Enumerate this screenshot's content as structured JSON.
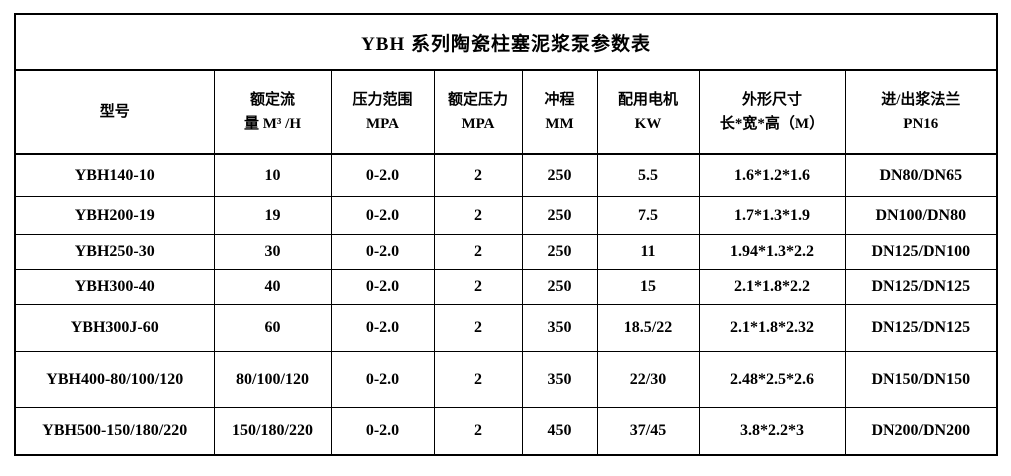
{
  "page": {
    "background": "#ffffff",
    "border_color": "#000000",
    "text_color": "#000000"
  },
  "table": {
    "title": "YBH 系列陶瓷柱塞泥浆泵参数表",
    "headers": [
      {
        "line1": "型号",
        "line2": ""
      },
      {
        "line1": "额定流",
        "line2": "量 M³ /H"
      },
      {
        "line1": "压力范围",
        "line2": "MPA"
      },
      {
        "line1": "额定压力",
        "line2": "MPA"
      },
      {
        "line1": "冲程",
        "line2": "MM"
      },
      {
        "line1": "配用电机",
        "line2": "KW"
      },
      {
        "line1": "外形尺寸",
        "line2": "长*宽*高（M）"
      },
      {
        "line1": "进/出浆法兰",
        "line2": "PN16"
      }
    ],
    "rows": [
      [
        "YBH140-10",
        "10",
        "0-2.0",
        "2",
        "250",
        "5.5",
        "1.6*1.2*1.6",
        "DN80/DN65"
      ],
      [
        "YBH200-19",
        "19",
        "0-2.0",
        "2",
        "250",
        "7.5",
        "1.7*1.3*1.9",
        "DN100/DN80"
      ],
      [
        "YBH250-30",
        "30",
        "0-2.0",
        "2",
        "250",
        "11",
        "1.94*1.3*2.2",
        "DN125/DN100"
      ],
      [
        "YBH300-40",
        "40",
        "0-2.0",
        "2",
        "250",
        "15",
        "2.1*1.8*2.2",
        "DN125/DN125"
      ],
      [
        "YBH300J-60",
        "60",
        "0-2.0",
        "2",
        "350",
        "18.5/22",
        "2.1*1.8*2.32",
        "DN125/DN125"
      ],
      [
        "YBH400-80/100/120",
        "80/100/120",
        "0-2.0",
        "2",
        "350",
        "22/30",
        "2.48*2.5*2.6",
        "DN150/DN150"
      ],
      [
        "YBH500-150/180/220",
        "150/180/220",
        "0-2.0",
        "2",
        "450",
        "37/45",
        "3.8*2.2*3",
        "DN200/DN200"
      ]
    ]
  }
}
